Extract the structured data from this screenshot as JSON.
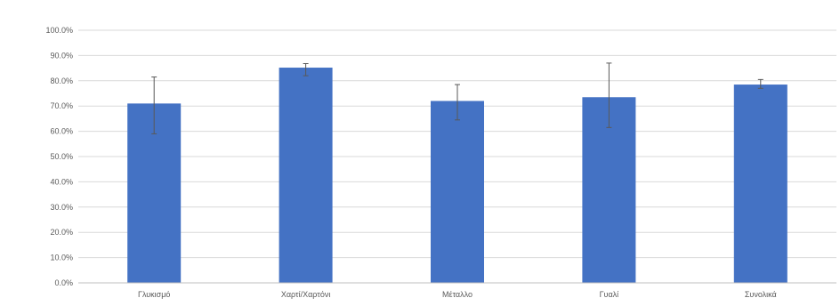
{
  "chart_data": {
    "type": "bar",
    "title": "",
    "xlabel": "",
    "ylabel": "",
    "categories": [
      "Γλυκισμό",
      "Χαρτί/Χαρτόνι",
      "Μέταλλο",
      "Γυαλί",
      "Συνολικά"
    ],
    "values": [
      71,
      85.2,
      72,
      73.5,
      78.5
    ],
    "error_high": [
      81.5,
      86.8,
      78.5,
      87,
      80.5
    ],
    "error_low": [
      59,
      82,
      64.5,
      61.5,
      77
    ],
    "ylim": [
      0,
      100
    ],
    "yticks": [
      "0.0%",
      "10.0%",
      "20.0%",
      "30.0%",
      "40.0%",
      "50.0%",
      "60.0%",
      "70.0%",
      "80.0%",
      "90.0%",
      "100.0%"
    ],
    "ytick_values": [
      0,
      10,
      20,
      30,
      40,
      50,
      60,
      70,
      80,
      90,
      100
    ],
    "grid": true,
    "bar_color": "#4472c4"
  }
}
